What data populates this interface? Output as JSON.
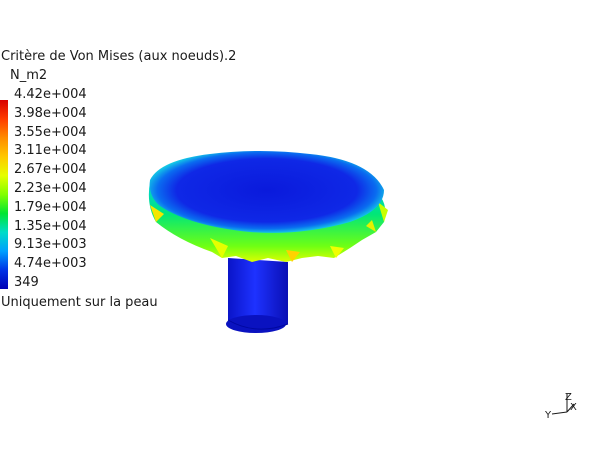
{
  "legend": {
    "title": "Critère de Von Mises (aux noeuds).2",
    "unit": "N_m2",
    "values": [
      "4.42e+004",
      "3.98e+004",
      "3.55e+004",
      "3.11e+004",
      "2.67e+004",
      "2.23e+004",
      "1.79e+004",
      "1.35e+004",
      "9.13e+003",
      "4.74e+003",
      "349"
    ],
    "footer": "Uniquement sur la peau",
    "colors": [
      "#e01010",
      "#ff5a00",
      "#ff9a00",
      "#ffd200",
      "#c8ff00",
      "#5aff00",
      "#00e050",
      "#00e0c8",
      "#0096ff",
      "#0028e0",
      "#0000b4"
    ]
  },
  "axis_triad": {
    "z_label": "Z",
    "y_label": "Y",
    "x_label": "X"
  }
}
